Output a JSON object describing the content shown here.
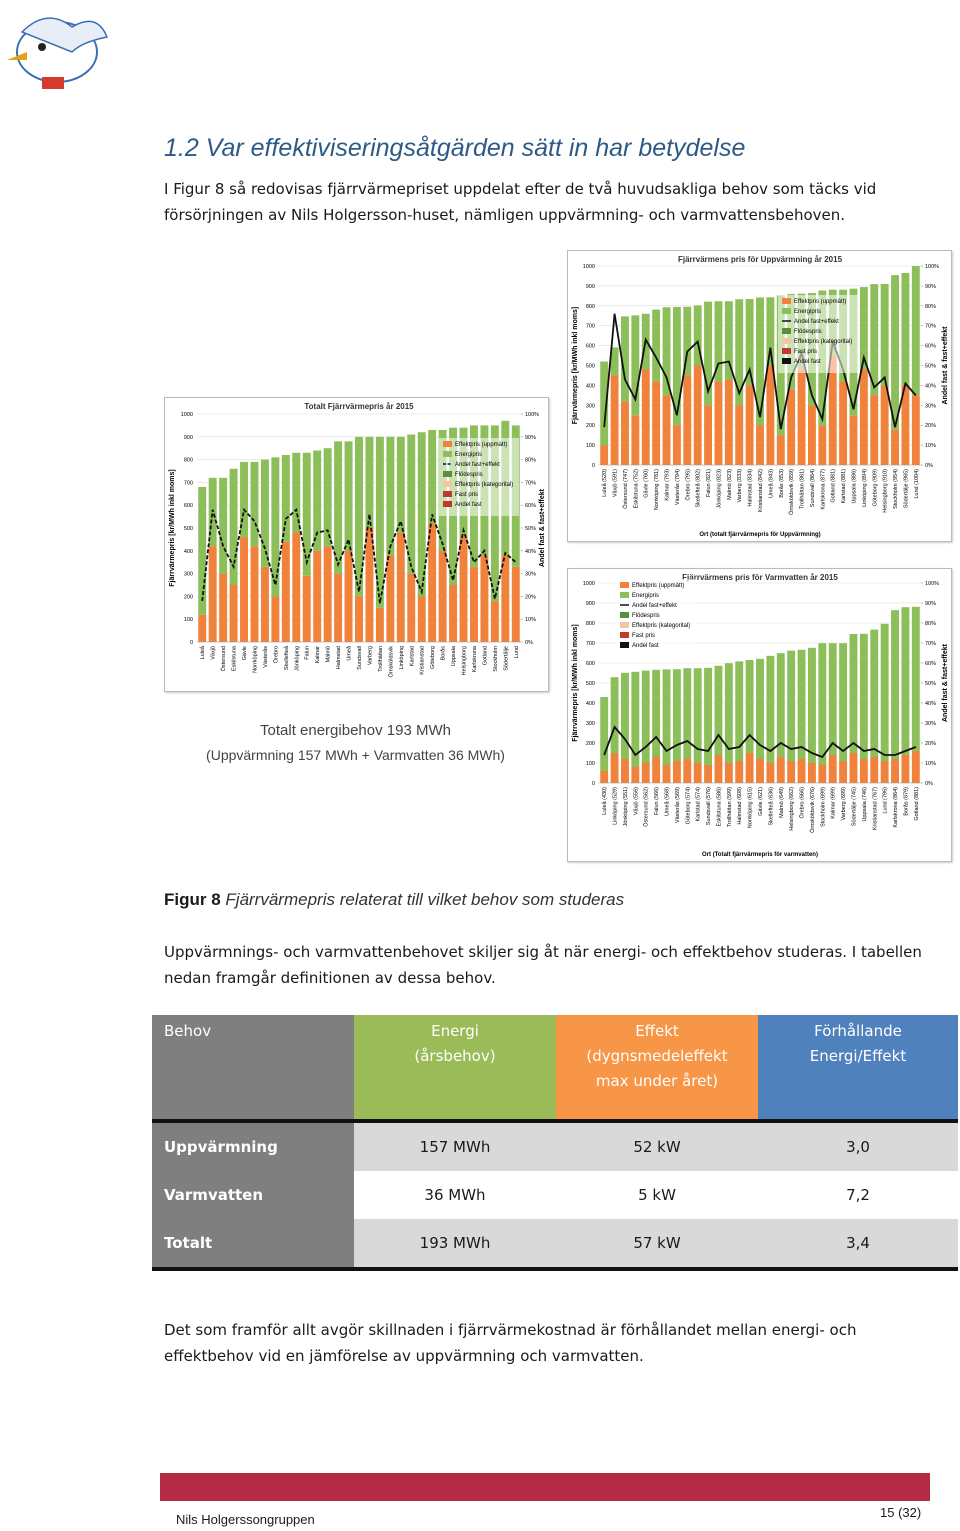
{
  "header": {
    "title": "1.2 Var effektiviseringsåtgärden sätt in har betydelse"
  },
  "intro": "I Figur 8 så redovisas fjärrvärmepriset uppdelat efter de två huvudsakliga behov som täcks vid försörjningen av Nils Holgersson-huset, nämligen uppvärmning- och varmvattensbehoven.",
  "caption_left": {
    "line1": "Totalt energibehov 193 MWh",
    "line2": "(Uppvärmning 157 MWh + Varmvatten 36 MWh)"
  },
  "chart_data": [
    {
      "type": "bar",
      "title": "Totalt Fjärrvärmepris år 2015",
      "y_label": "Fjärrvärmepris [kr/MWh inkl moms]",
      "y2_label": "Andel fast & fast+effekt",
      "categories": [
        "Luleå",
        "Växjö",
        "Östersund",
        "Eskilstuna",
        "Gävle",
        "Norrköping",
        "Västerås",
        "Örebro",
        "Skellefteå",
        "Jönköping",
        "Falun",
        "Kalmar",
        "Malmö",
        "Halmstad",
        "Umeå",
        "Sundsvall",
        "Varberg",
        "Trollhättan",
        "Örnsköldsvik",
        "Linköping",
        "Karlstad",
        "Kristianstad",
        "Göteborg",
        "Borås",
        "Uppsala",
        "Helsingborg",
        "Karlskrona",
        "Gotland",
        "Stockholm",
        "Södertälje",
        "Lund"
      ],
      "series": [
        {
          "name": "Effektpris (uppmätt)",
          "color": "#f0823c",
          "values": [
            120,
            420,
            300,
            250,
            460,
            420,
            330,
            200,
            440,
            480,
            290,
            400,
            420,
            300,
            400,
            200,
            500,
            150,
            380,
            480,
            300,
            200,
            520,
            400,
            250,
            460,
            330,
            380,
            180,
            380,
            330
          ]
        },
        {
          "name": "Energipris",
          "color": "#8cbf5a",
          "values": [
            560,
            300,
            420,
            510,
            330,
            370,
            470,
            610,
            380,
            350,
            540,
            440,
            430,
            580,
            480,
            700,
            400,
            750,
            520,
            420,
            610,
            720,
            410,
            530,
            690,
            480,
            620,
            570,
            770,
            590,
            620
          ]
        },
        {
          "name": "Andel fast+effekt",
          "color": "#111111",
          "axis": "y2",
          "dash": true,
          "values": [
            18,
            58,
            42,
            33,
            58,
            53,
            41,
            25,
            54,
            58,
            35,
            48,
            49,
            34,
            45,
            22,
            56,
            17,
            42,
            53,
            33,
            22,
            56,
            43,
            27,
            49,
            35,
            40,
            19,
            39,
            35
          ]
        }
      ],
      "legend_other": [
        {
          "name": "Flödespris",
          "color": "#5a8f3c"
        },
        {
          "name": "Effektpris (kategorital)",
          "color": "#f7c6a0"
        },
        {
          "name": "Fast pris",
          "color": "#c0392b"
        },
        {
          "name": "Andel fast",
          "color": "#c0392b"
        }
      ],
      "ylim": [
        0,
        1000
      ],
      "yticks": [
        0,
        100,
        200,
        300,
        400,
        500,
        600,
        700,
        800,
        900,
        1000
      ],
      "y2lim": [
        0,
        100
      ],
      "y2ticks": [
        {
          "value": 0,
          "label": "0%"
        },
        {
          "value": 10,
          "label": "10%"
        },
        {
          "value": 20,
          "label": "20%"
        },
        {
          "value": 30,
          "label": "30%"
        },
        {
          "value": 40,
          "label": "40%"
        },
        {
          "value": 50,
          "label": "50%"
        },
        {
          "value": 60,
          "label": "60%"
        },
        {
          "value": 70,
          "label": "70%"
        },
        {
          "value": 80,
          "label": "80%"
        },
        {
          "value": 90,
          "label": "90%"
        },
        {
          "value": 100,
          "label": "100%"
        }
      ],
      "grid": true
    },
    {
      "type": "bar",
      "title": "Fjärrvärmens pris för Uppvärmning år 2015",
      "y_label": "Fjärrvärmepris [kr/MWh inkl moms]",
      "y2_label": "Andel fast & fast+effekt",
      "x_label": "Ort (totalt fjärrvärmepris för Uppvärmning)",
      "categories": [
        "Luleå (520)",
        "Växjö (591)",
        "Östersund (747)",
        "Eskilstuna (752)",
        "Gävle (760)",
        "Norrköping (781)",
        "Kalmar (793)",
        "Västerås (794)",
        "Örebro (795)",
        "Skellefteå (802)",
        "Falun (821)",
        "Jönköping (823)",
        "Malmö (823)",
        "Varberg (833)",
        "Halmstad (834)",
        "Kristianstad (842)",
        "Umeå (843)",
        "Borås (853)",
        "Örnsköldsvik (859)",
        "Trollhättan (861)",
        "Sundsvall (864)",
        "Karlskrona (877)",
        "Gotland (881)",
        "Karlstad (881)",
        "Uppsala (886)",
        "Linköping (894)",
        "Göteborg (909)",
        "Helsingborg (910)",
        "Stockholm (954)",
        "Södertälje (965)",
        "Lund (1004)"
      ],
      "series": [
        {
          "name": "Effektpris (uppmätt)",
          "color": "#f0823c",
          "values": [
            100,
            450,
            320,
            250,
            480,
            420,
            350,
            200,
            450,
            500,
            300,
            420,
            430,
            300,
            400,
            200,
            500,
            150,
            380,
            480,
            300,
            200,
            550,
            420,
            250,
            480,
            350,
            400,
            180,
            400,
            350
          ]
        },
        {
          "name": "Energipris",
          "color": "#8cbf5a",
          "values": [
            420,
            141,
            427,
            502,
            280,
            361,
            443,
            594,
            345,
            302,
            521,
            403,
            393,
            533,
            434,
            642,
            343,
            703,
            479,
            381,
            564,
            677,
            331,
            461,
            636,
            414,
            559,
            510,
            774,
            565,
            654
          ]
        },
        {
          "name": "Andel fast+effekt",
          "color": "#111111",
          "axis": "y2",
          "dash": false,
          "values": [
            19,
            76,
            43,
            33,
            63,
            54,
            44,
            25,
            57,
            62,
            37,
            51,
            52,
            36,
            48,
            24,
            59,
            18,
            44,
            56,
            35,
            23,
            62,
            48,
            28,
            54,
            39,
            44,
            19,
            41,
            35
          ]
        }
      ],
      "legend_other": [
        {
          "name": "Flödespris",
          "color": "#5a8f3c"
        },
        {
          "name": "Effektpris (kategorital)",
          "color": "#f7c6a0"
        },
        {
          "name": "Fast pris",
          "color": "#c0392b"
        },
        {
          "name": "Andel fast",
          "color": "#111111"
        }
      ],
      "ylim": [
        0,
        1000
      ],
      "yticks": [
        0,
        100,
        200,
        300,
        400,
        500,
        600,
        700,
        800,
        900,
        1000
      ],
      "y2lim": [
        0,
        100
      ],
      "y2ticks": [
        {
          "value": 0,
          "label": "0%"
        },
        {
          "value": 10,
          "label": "10%"
        },
        {
          "value": 20,
          "label": "20%"
        },
        {
          "value": 30,
          "label": "30%"
        },
        {
          "value": 40,
          "label": "40%"
        },
        {
          "value": 50,
          "label": "50%"
        },
        {
          "value": 60,
          "label": "60%"
        },
        {
          "value": 70,
          "label": "70%"
        },
        {
          "value": 80,
          "label": "80%"
        },
        {
          "value": 90,
          "label": "90%"
        },
        {
          "value": 100,
          "label": "100%"
        }
      ],
      "grid": true
    },
    {
      "type": "bar",
      "title": "Fjärrvärmens pris för Varmvatten år 2015",
      "y_label": "Fjärrvärmepris [kr/MWh inkl moms]",
      "y2_label": "Andel fast & fast+effekt",
      "x_label": "Ort (Totalt fjärrvärmepris för varmvatten)",
      "categories": [
        "Luleå (430)",
        "Linköping (529)",
        "Jönköping (551)",
        "Växjö (556)",
        "Östersund (562)",
        "Falun (566)",
        "Umeå (568)",
        "Västerås (569)",
        "Göteborg (574)",
        "Karlstad (574)",
        "Sundsvall (576)",
        "Eskilstuna (586)",
        "Trollhättan (599)",
        "Halmstad (608)",
        "Norrköping (615)",
        "Gävle (621)",
        "Skellefteå (636)",
        "Malmö (649)",
        "Helsingborg (662)",
        "Örebro (666)",
        "Örnsköldsvik (676)",
        "Stockholm (699)",
        "Kalmar (699)",
        "Varberg (699)",
        "Södertälje (745)",
        "Uppsala (746)",
        "Kristianstad (767)",
        "Lund (796)",
        "Karlskrona (864)",
        "Borås (879)",
        "Gotland (881)"
      ],
      "series": [
        {
          "name": "Effektpris (uppmätt)",
          "color": "#f0823c",
          "values": [
            60,
            150,
            120,
            80,
            100,
            130,
            90,
            110,
            120,
            100,
            90,
            140,
            100,
            110,
            150,
            120,
            100,
            130,
            110,
            120,
            100,
            90,
            140,
            110,
            150,
            120,
            130,
            110,
            120,
            140,
            160
          ]
        },
        {
          "name": "Energipris",
          "color": "#8cbf5a",
          "values": [
            370,
            379,
            431,
            476,
            462,
            436,
            478,
            459,
            454,
            474,
            486,
            446,
            499,
            498,
            465,
            501,
            536,
            519,
            552,
            546,
            576,
            609,
            559,
            589,
            595,
            626,
            637,
            686,
            744,
            739,
            721
          ]
        },
        {
          "name": "Andel fast+effekt",
          "color": "#111111",
          "axis": "y2",
          "dash": false,
          "values": [
            14,
            28,
            22,
            14,
            18,
            23,
            16,
            19,
            21,
            17,
            16,
            24,
            17,
            18,
            24,
            19,
            16,
            20,
            17,
            18,
            15,
            13,
            20,
            16,
            20,
            16,
            17,
            14,
            14,
            16,
            18
          ]
        }
      ],
      "legend_other": [
        {
          "name": "Flödespris",
          "color": "#5a8f3c"
        },
        {
          "name": "Effektpris (kategorital)",
          "color": "#f7c6a0"
        },
        {
          "name": "Fast pris",
          "color": "#c0392b"
        },
        {
          "name": "Andel fast",
          "color": "#111111"
        }
      ],
      "ylim": [
        0,
        1000
      ],
      "yticks": [
        0,
        100,
        200,
        300,
        400,
        500,
        600,
        700,
        800,
        900,
        1000
      ],
      "y2lim": [
        0,
        100
      ],
      "y2ticks": [
        {
          "value": 0,
          "label": "0%"
        },
        {
          "value": 10,
          "label": "10%"
        },
        {
          "value": 20,
          "label": "20%"
        },
        {
          "value": 30,
          "label": "30%"
        },
        {
          "value": 40,
          "label": "40%"
        },
        {
          "value": 50,
          "label": "50%"
        },
        {
          "value": 60,
          "label": "60%"
        },
        {
          "value": 70,
          "label": "70%"
        },
        {
          "value": 80,
          "label": "80%"
        },
        {
          "value": 90,
          "label": "90%"
        },
        {
          "value": 100,
          "label": "100%"
        }
      ],
      "grid": true
    }
  ],
  "figure_caption": {
    "label": "Figur 8",
    "text": "Fjärrvärmepris relaterat till vilket behov som studeras"
  },
  "paragraph2": "Uppvärmnings- och varmvattenbehovet skiljer sig åt när energi- och effektbehov studeras. I tabellen nedan framgår definitionen av dessa behov.",
  "table": {
    "header": [
      [
        "Behov"
      ],
      [
        "Energi",
        "(årsbehov)"
      ],
      [
        "Effekt",
        "(dygnsmedeleffekt",
        "max under året)"
      ],
      [
        "Förhållande",
        "Energi/Effekt"
      ]
    ],
    "rows": [
      [
        "Uppvärmning",
        "157 MWh",
        "52 kW",
        "3,0"
      ],
      [
        "Varmvatten",
        "36 MWh",
        "5 kW",
        "7,2"
      ],
      [
        "Totalt",
        "193 MWh",
        "57 kW",
        "3,4"
      ]
    ]
  },
  "conclusion": "Det som framför allt avgör skillnaden i fjärrvärmekostnad är förhållandet mellan energi- och effektbehov vid en jämförelse av uppvärmning och varmvatten.",
  "footer": {
    "org": "Nils Holgerssongruppen",
    "page": "15 (32)"
  }
}
